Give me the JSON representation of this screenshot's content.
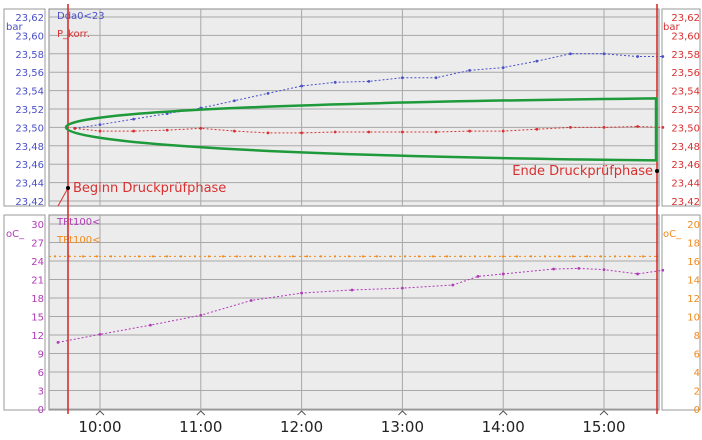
{
  "chart_data": [
    {
      "type": "line",
      "name": "pressure-panel",
      "left_unit": "bar",
      "right_unit": "bar",
      "ylim": [
        23.42,
        23.62
      ],
      "y_ticks": [
        "23,62",
        "23,60",
        "23,58",
        "23,56",
        "23,54",
        "23,52",
        "23,50",
        "23,48",
        "23,46",
        "23,44",
        "23,42"
      ],
      "right_y_ticks": [
        "23,62",
        "23,60",
        "23,58",
        "23,56",
        "23,54",
        "23,52",
        "23,50",
        "23,48",
        "23,46",
        "23,44",
        "23,42"
      ],
      "series": [
        {
          "name": "Dda0<23",
          "color": "#4a50c8",
          "x": [
            "09:45",
            "10:00",
            "10:20",
            "10:40",
            "11:00",
            "11:20",
            "11:40",
            "12:00",
            "12:20",
            "12:40",
            "13:00",
            "13:20",
            "13:40",
            "14:00",
            "14:20",
            "14:40",
            "15:00",
            "15:20",
            "15:35"
          ],
          "values": [
            23.499,
            23.503,
            23.509,
            23.515,
            23.521,
            23.529,
            23.537,
            23.545,
            23.549,
            23.55,
            23.554,
            23.554,
            23.562,
            23.565,
            23.572,
            23.58,
            23.58,
            23.577,
            23.577
          ]
        },
        {
          "name": "P_korr.",
          "color": "#d83030",
          "x": [
            "09:45",
            "10:00",
            "10:20",
            "10:40",
            "11:00",
            "11:20",
            "11:40",
            "12:00",
            "12:20",
            "12:40",
            "13:00",
            "13:20",
            "13:40",
            "14:00",
            "14:20",
            "14:40",
            "15:00",
            "15:20",
            "15:35"
          ],
          "values": [
            23.499,
            23.496,
            23.496,
            23.497,
            23.499,
            23.496,
            23.494,
            23.494,
            23.495,
            23.495,
            23.495,
            23.495,
            23.496,
            23.496,
            23.498,
            23.5,
            23.5,
            23.501,
            23.5
          ]
        }
      ],
      "annotations": [
        "Beginn Druckprüfphase",
        "Ende Druckprüfphase"
      ]
    },
    {
      "type": "line",
      "name": "temperature-panel",
      "left_unit": "oC_",
      "right_unit": "oC_",
      "ylim": [
        0,
        30
      ],
      "right_ylim": [
        0,
        20
      ],
      "y_ticks": [
        "30",
        "27",
        "24",
        "21",
        "18",
        "15",
        "12",
        "9",
        "6",
        "3",
        "0"
      ],
      "right_y_ticks": [
        "20",
        "18",
        "16",
        "14",
        "12",
        "10",
        "8",
        "6",
        "4",
        "2",
        "0"
      ],
      "series": [
        {
          "name": "TPt100<",
          "color": "#b03ab8",
          "x": [
            "09:35",
            "10:00",
            "10:30",
            "11:00",
            "11:30",
            "12:00",
            "12:30",
            "13:00",
            "13:30",
            "13:45",
            "14:00",
            "14:30",
            "14:45",
            "15:00",
            "15:20",
            "15:35"
          ],
          "values": [
            10.8,
            12.1,
            13.6,
            15.2,
            17.6,
            18.8,
            19.3,
            19.6,
            20.1,
            21.5,
            21.9,
            22.7,
            22.8,
            22.6,
            21.9,
            22.5
          ]
        },
        {
          "name": "TPt100<",
          "color": "#f08a1e",
          "x": [
            "09:35",
            "15:35"
          ],
          "values": [
            16.5,
            16.5
          ]
        }
      ]
    }
  ],
  "x_axis": {
    "ticks": [
      "10:00",
      "11:00",
      "12:00",
      "13:00",
      "14:00",
      "15:00"
    ]
  },
  "colors": {
    "panel_bg": "#ececec",
    "grid": "#a8a8a8",
    "left_axis_text": "#4a50c8",
    "right_axis_text": "#d83030",
    "marker": "#d83030",
    "ellipse": "#1e9a3a"
  }
}
